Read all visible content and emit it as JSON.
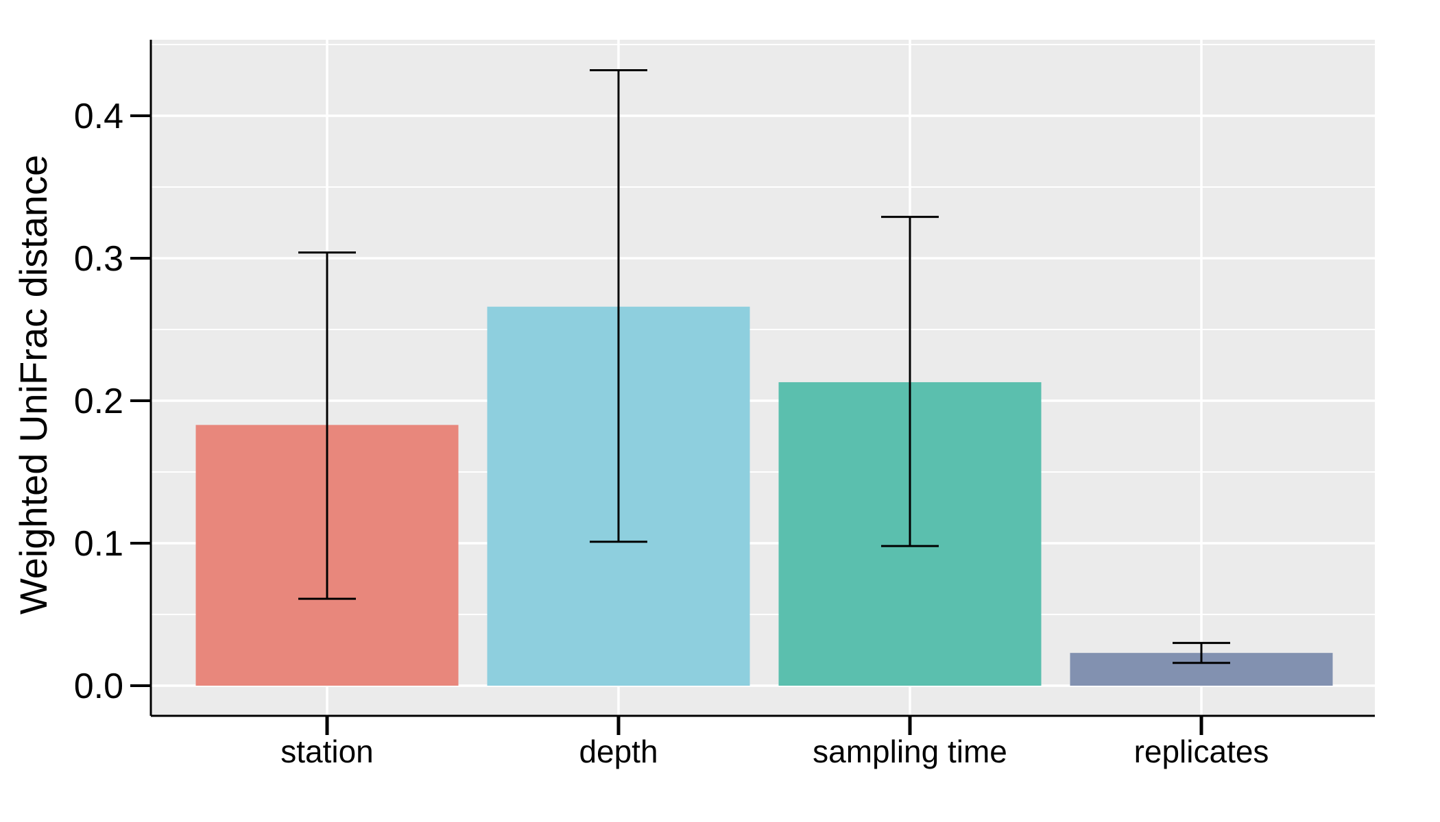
{
  "chart_data": {
    "type": "bar",
    "title": "",
    "xlabel": "",
    "ylabel": "Weighted UniFrac distance",
    "categories": [
      "station",
      "depth",
      "sampling time",
      "replicates"
    ],
    "series": [
      {
        "values": [
          0.183,
          0.266,
          0.213,
          0.023
        ],
        "error_low": [
          0.061,
          0.101,
          0.098,
          0.016
        ],
        "error_high": [
          0.304,
          0.432,
          0.329,
          0.03
        ],
        "colors": [
          "#E8877C",
          "#8ECFDE",
          "#5BBFAE",
          "#8291B0"
        ]
      }
    ],
    "ylim": [
      0,
      0.45
    ],
    "yticks": [
      0.0,
      0.1,
      0.2,
      0.3,
      0.4
    ],
    "ytick_labels": [
      "0.0",
      "0.1",
      "0.2",
      "0.3",
      "0.4"
    ],
    "grid": true,
    "legend": "none",
    "panel_background": "#EBEBEB",
    "grid_color": "#FFFFFF"
  }
}
